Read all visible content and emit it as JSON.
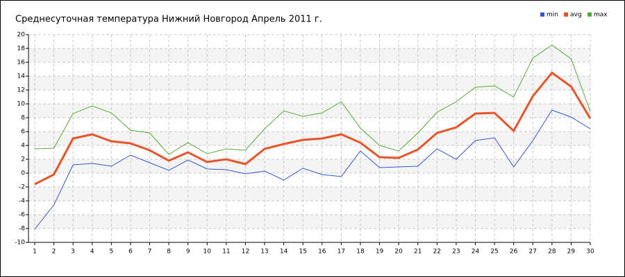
{
  "chart_data": {
    "type": "line",
    "title": "Среднесуточная температура Нижний Новгород  Апрель 2011 г.",
    "x": [
      1,
      2,
      3,
      4,
      5,
      6,
      7,
      8,
      9,
      10,
      11,
      12,
      13,
      14,
      15,
      16,
      17,
      18,
      19,
      20,
      21,
      22,
      23,
      24,
      25,
      26,
      27,
      28,
      29,
      30
    ],
    "series": [
      {
        "name": "min",
        "color": "#3355cc",
        "values": [
          -8.1,
          -4.6,
          1.2,
          1.4,
          1.0,
          2.6,
          1.5,
          0.4,
          1.9,
          0.6,
          0.5,
          -0.1,
          0.3,
          -1.0,
          0.7,
          -0.2,
          -0.5,
          3.2,
          0.8,
          0.9,
          1.0,
          3.5,
          2.0,
          4.7,
          5.1,
          0.9,
          4.7,
          9.1,
          8.1,
          6.4
        ]
      },
      {
        "name": "avg",
        "color": "#e8542a",
        "values": [
          -1.6,
          -0.2,
          5.0,
          5.6,
          4.6,
          4.3,
          3.3,
          1.8,
          3.0,
          1.6,
          2.0,
          1.3,
          3.5,
          4.2,
          4.8,
          5.0,
          5.6,
          4.4,
          2.3,
          2.2,
          3.4,
          5.8,
          6.6,
          8.6,
          8.7,
          6.1,
          11.1,
          14.5,
          12.5,
          7.9
        ]
      },
      {
        "name": "max",
        "color": "#55aa33",
        "values": [
          3.5,
          3.6,
          8.6,
          9.7,
          8.7,
          6.2,
          5.8,
          2.7,
          4.4,
          2.8,
          3.5,
          3.3,
          6.4,
          9.0,
          8.2,
          8.7,
          10.3,
          6.5,
          4.0,
          3.2,
          5.8,
          8.8,
          10.3,
          12.4,
          12.6,
          11.0,
          16.6,
          18.5,
          16.5,
          8.9
        ]
      }
    ],
    "xlim": [
      1,
      30
    ],
    "xticks": [
      1,
      2,
      3,
      4,
      5,
      6,
      7,
      8,
      9,
      10,
      11,
      12,
      13,
      14,
      15,
      16,
      17,
      18,
      19,
      20,
      21,
      22,
      23,
      24,
      25,
      26,
      27,
      28,
      29,
      30
    ],
    "ylim": [
      -10,
      20
    ],
    "yticks": [
      -10,
      -8,
      -6,
      -4,
      -2,
      0,
      2,
      4,
      6,
      8,
      10,
      12,
      14,
      16,
      18,
      20
    ],
    "grid": true,
    "legend": "top-right"
  }
}
